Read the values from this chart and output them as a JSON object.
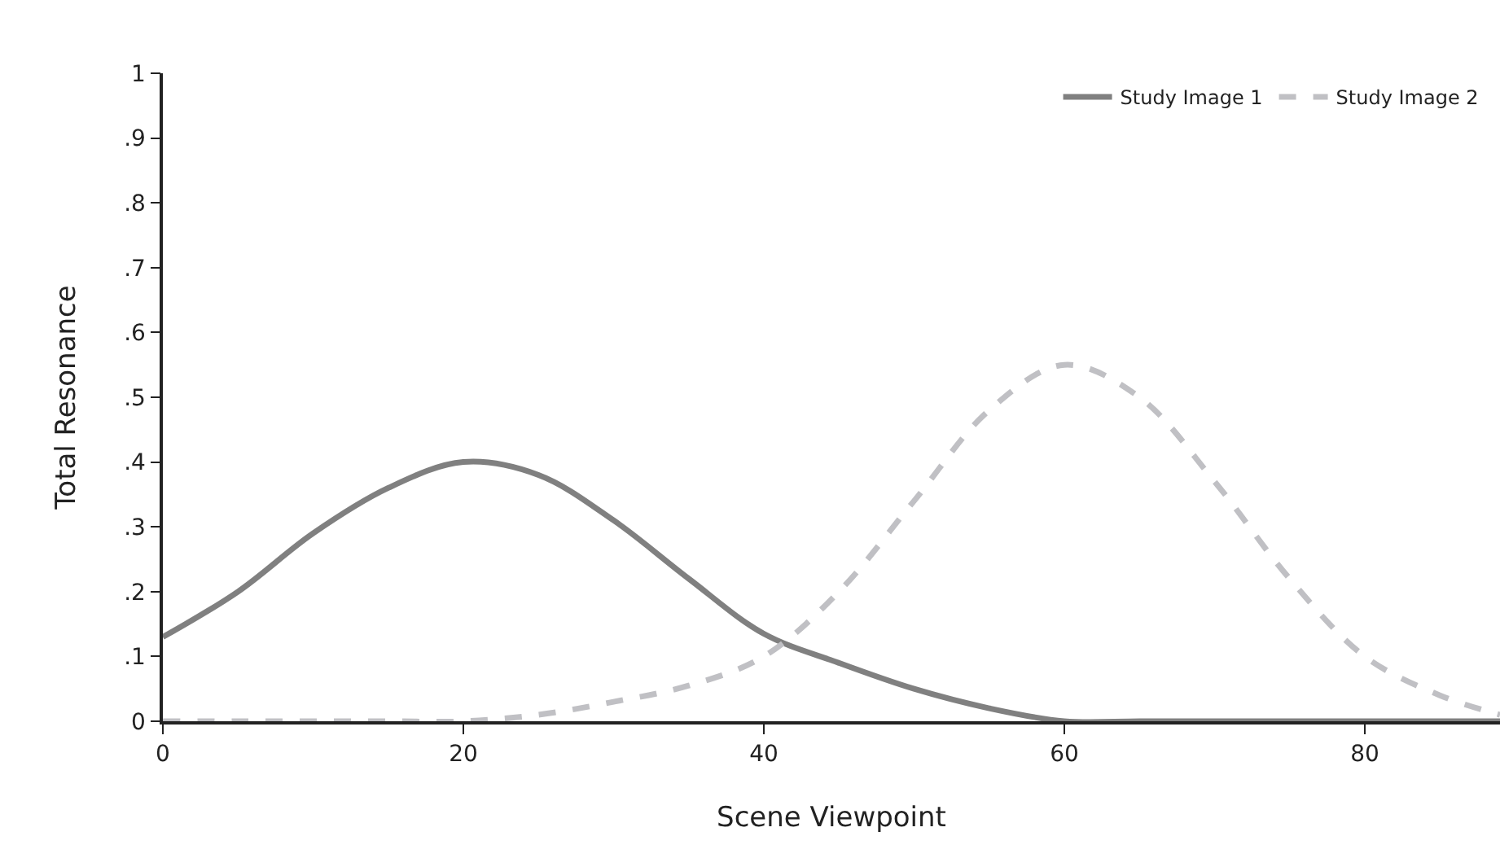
{
  "chart_data": {
    "type": "line",
    "xlabel": "Scene Viewpoint",
    "ylabel": "Total Resonance",
    "xlim": [
      0,
      89
    ],
    "xticks": [
      0,
      20,
      40,
      60,
      80
    ],
    "ylim": [
      0,
      1
    ],
    "yticks": [
      0,
      {
        "value": 0.1,
        "label": ".1"
      },
      {
        "value": 0.2,
        "label": ".2"
      },
      {
        "value": 0.3,
        "label": ".3"
      },
      {
        "value": 0.4,
        "label": ".4"
      },
      {
        "value": 0.5,
        "label": ".5"
      },
      {
        "value": 0.6,
        "label": ".6"
      },
      {
        "value": 0.7,
        "label": ".7"
      },
      {
        "value": 0.8,
        "label": ".8"
      },
      {
        "value": 0.9,
        "label": ".9"
      },
      1
    ],
    "legend": "top right",
    "x": [
      0,
      5,
      10,
      15,
      20,
      25,
      30,
      35,
      40,
      45,
      50,
      55,
      60,
      65,
      70,
      75,
      80,
      85,
      89
    ],
    "series": [
      {
        "name": "Study Image 1",
        "color": "#808080",
        "line_style": "solid",
        "values": [
          0.13,
          0.2,
          0.29,
          0.36,
          0.4,
          0.38,
          0.31,
          0.22,
          0.135,
          0.09,
          0.05,
          0.02,
          0,
          0,
          0,
          0,
          0,
          0,
          0
        ]
      },
      {
        "name": "Study Image 2",
        "color": "#c0c0c4",
        "line_style": "dashed",
        "values": [
          0,
          0,
          0,
          0,
          0,
          0.01,
          0.03,
          0.055,
          0.1,
          0.2,
          0.34,
          0.48,
          0.55,
          0.5,
          0.37,
          0.22,
          0.1,
          0.04,
          0.01
        ]
      }
    ]
  }
}
